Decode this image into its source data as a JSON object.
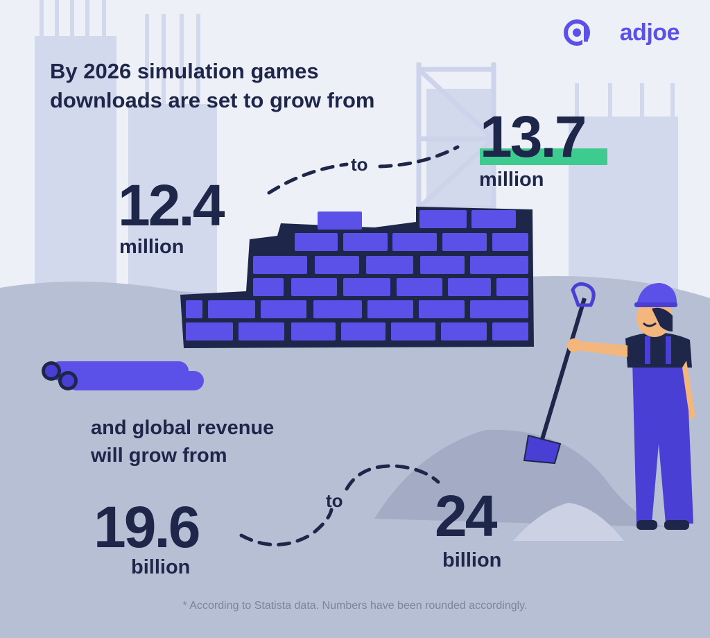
{
  "brand": {
    "logo_text": "adjoe",
    "accent": "#5b50e8"
  },
  "headline": {
    "line1": "By 2026 simulation games",
    "line2": "downloads are set to grow from"
  },
  "downloads": {
    "from_value": "12.4",
    "from_unit": "million",
    "connector": "to",
    "to_value": "13.7",
    "to_unit": "million",
    "highlight_color": "#3ecb8f"
  },
  "revenue": {
    "line1": "and global revenue",
    "line2": "will grow from",
    "from_value": "19.6",
    "from_unit": "billion",
    "connector": "to",
    "to_value": "24",
    "to_unit": "billion"
  },
  "footnote": "* According to Statista data. Numbers have been rounded accordingly.",
  "colors": {
    "background": "#eef0f8",
    "building": "#d3d9ec",
    "ground": "#b7bfd4",
    "text": "#1e2749",
    "brick": "#5b50e8"
  }
}
